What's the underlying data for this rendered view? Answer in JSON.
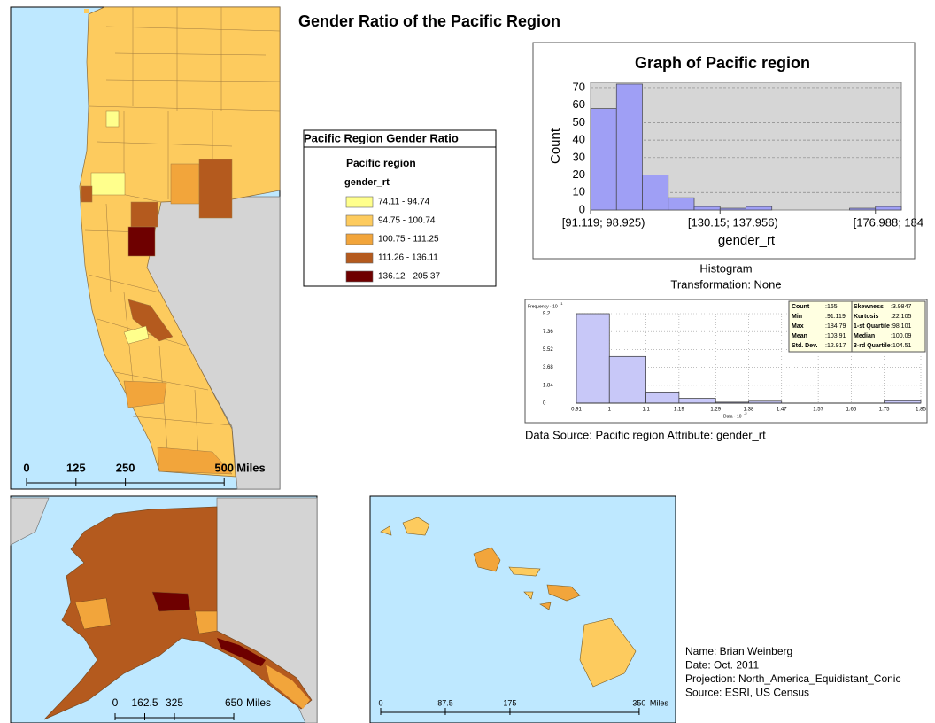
{
  "title": "Gender Ratio of the Pacific Region",
  "legend": {
    "title": "Pacific Region Gender Ratio",
    "layer": "Pacific region",
    "field": "gender_rt",
    "classes": [
      {
        "label": "74.11 - 94.74",
        "color": "#ffff8c"
      },
      {
        "label": "94.75 - 100.74",
        "color": "#fdcb5e"
      },
      {
        "label": "100.75 - 111.25",
        "color": "#f2a53b"
      },
      {
        "label": "111.26 - 136.11",
        "color": "#b45a1e"
      },
      {
        "label": "136.12 - 205.37",
        "color": "#6e0000"
      }
    ]
  },
  "graph": {
    "type": "histogram",
    "title": "Graph of Pacific region",
    "ylabel": "Count",
    "xlabel": "gender_rt",
    "color": "#9f9ff5",
    "bins": [
      91.119,
      98.925,
      106.731,
      114.537,
      122.344,
      130.15,
      137.956,
      145.762,
      153.569,
      161.375,
      169.181,
      176.988,
      184.794
    ],
    "counts": [
      58,
      72,
      20,
      7,
      2,
      1,
      2,
      0,
      0,
      0,
      1,
      2
    ],
    "xlim": [
      91.119,
      184.794
    ],
    "ylim": [
      0,
      73
    ],
    "yticks": [
      0,
      10,
      20,
      30,
      40,
      50,
      60,
      70
    ],
    "xticks": [
      {
        "value": 91.119,
        "label": "[91.119; 98.925)"
      },
      {
        "value": 130.15,
        "label": "[130.15; 137.956)"
      },
      {
        "value": 176.988,
        "label": "[176.988; 184"
      }
    ],
    "caption": "Histogram",
    "transformation": "Transformation: None"
  },
  "histogram": {
    "type": "histogram",
    "ylabel": "Frequency · 10",
    "ylabel_exp": "-1",
    "xlabel": "Data · 10",
    "xlabel_exp": "-2",
    "color": "#c8c8f8",
    "bins": [
      0.91,
      1,
      1.1,
      1.19,
      1.29,
      1.38,
      1.47,
      1.57,
      1.66,
      1.75,
      1.85
    ],
    "counts": [
      9.2,
      4.8,
      1.15,
      0.5,
      0.1,
      0.2,
      0,
      0,
      0,
      0.25
    ],
    "ylim": [
      0,
      9.2
    ],
    "yticks": [
      0,
      1.84,
      3.68,
      5.52,
      7.36,
      9.2
    ],
    "stats": [
      [
        {
          "label": "Count",
          "value": ":165"
        },
        {
          "label": "Skewness",
          "value": ":3.9847"
        }
      ],
      [
        {
          "label": "Min",
          "value": ":91.119"
        },
        {
          "label": "Kurtosis",
          "value": ":22.105"
        }
      ],
      [
        {
          "label": "Max",
          "value": ":184.79"
        },
        {
          "label": "1-st Quartile",
          "value": ":98.101"
        }
      ],
      [
        {
          "label": "Mean",
          "value": ":103.91"
        },
        {
          "label": "Median",
          "value": ":100.09"
        }
      ],
      [
        {
          "label": "Std. Dev.",
          "value": ":12.917"
        },
        {
          "label": "3-rd Quartile",
          "value": ":104.51"
        }
      ]
    ],
    "source": "Data Source: Pacific region Attribute: gender_rt"
  },
  "scalebars": [
    {
      "ticks": [
        0,
        125,
        250,
        500
      ],
      "unit": "Miles"
    },
    {
      "ticks": [
        0,
        162.5,
        325,
        650
      ],
      "unit": "Miles"
    },
    {
      "ticks": [
        0,
        87.5,
        175,
        350
      ],
      "unit": "Miles"
    }
  ],
  "info": [
    "Name: Brian Weinberg",
    "Date: Oct. 2011",
    "Projection: North_America_Equidistant_Conic",
    "Source: ESRI, US Census"
  ]
}
